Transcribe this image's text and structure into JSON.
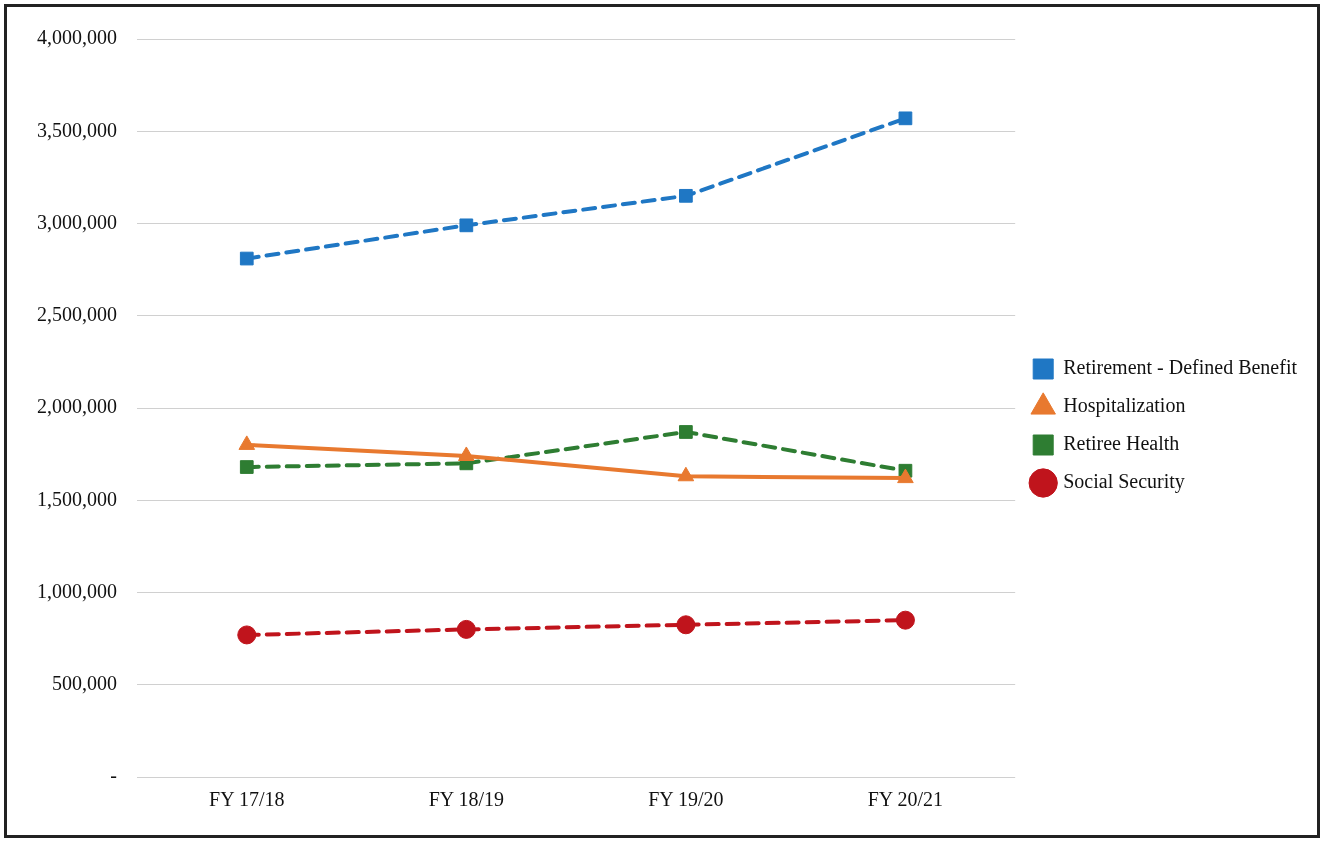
{
  "chart_data": {
    "type": "line",
    "categories": [
      "FY 17/18",
      "FY 18/19",
      "FY 19/20",
      "FY 20/21"
    ],
    "series": [
      {
        "name": "Retirement - Defined Benefit",
        "color": "#1f77c4",
        "values": [
          2810000,
          2990000,
          3150000,
          3570000
        ],
        "marker": "square",
        "line_style": "dashed"
      },
      {
        "name": "Hospitalization",
        "color": "#e8792f",
        "values": [
          1800000,
          1740000,
          1630000,
          1620000
        ],
        "marker": "triangle",
        "line_style": "solid"
      },
      {
        "name": "Retiree Health",
        "color": "#2e7d32",
        "values": [
          1680000,
          1700000,
          1870000,
          1660000
        ],
        "marker": "square",
        "line_style": "dashed"
      },
      {
        "name": "Social Security",
        "color": "#c0141c",
        "values": [
          770000,
          800000,
          825000,
          850000
        ],
        "marker": "circle",
        "line_style": "dashed"
      }
    ],
    "ylim": [
      0,
      4000000
    ],
    "yticks": [
      {
        "value": 0,
        "label": "-"
      },
      {
        "value": 500000,
        "label": "500,000"
      },
      {
        "value": 1000000,
        "label": "1,000,000"
      },
      {
        "value": 1500000,
        "label": "1,500,000"
      },
      {
        "value": 2000000,
        "label": "2,000,000"
      },
      {
        "value": 2500000,
        "label": "2,500,000"
      },
      {
        "value": 3000000,
        "label": "3,000,000"
      },
      {
        "value": 3500000,
        "label": "3,500,000"
      },
      {
        "value": 4000000,
        "label": "4,000,000"
      }
    ],
    "grid": "y",
    "legend": "right"
  }
}
